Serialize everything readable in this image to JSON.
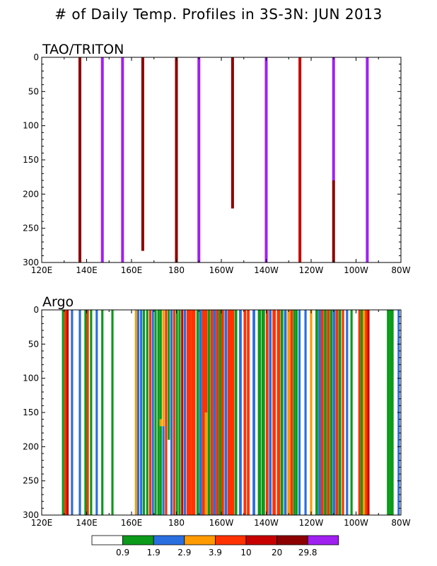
{
  "title": "# of Daily Temp. Profiles in 3S-3N: JUN 2013",
  "colorbar": {
    "labels": [
      "0.9",
      "1.9",
      "2.9",
      "3.9",
      "10",
      "20",
      "29.8"
    ],
    "colors": [
      "#ffffff",
      "#0b9a1a",
      "#2a6fe0",
      "#ff9a00",
      "#ff3200",
      "#c80000",
      "#8c0000",
      "#a020f0"
    ]
  },
  "chart_data": [
    {
      "type": "bar",
      "title": "TAO/TRITON",
      "xlim": [
        120,
        280
      ],
      "ylim": [
        0,
        300
      ],
      "y_inverted": true,
      "x_ticks": [
        {
          "value": 120,
          "label": "120E"
        },
        {
          "value": 140,
          "label": "140E"
        },
        {
          "value": 160,
          "label": "160E"
        },
        {
          "value": 180,
          "label": "180"
        },
        {
          "value": 200,
          "label": "160W"
        },
        {
          "value": 220,
          "label": "140W"
        },
        {
          "value": 240,
          "label": "120W"
        },
        {
          "value": 260,
          "label": "100W"
        },
        {
          "value": 280,
          "label": "80W"
        }
      ],
      "y_ticks": [
        0,
        50,
        100,
        150,
        200,
        250,
        300
      ],
      "bars": [
        {
          "lon": 137.0,
          "color": "#8c0000",
          "segments": [
            [
              0,
              300
            ]
          ]
        },
        {
          "lon": 147.0,
          "color": "#a020f0",
          "segments": [
            [
              0,
              300
            ]
          ]
        },
        {
          "lon": 156.0,
          "color": "#a020f0",
          "segments": [
            [
              0,
              300
            ]
          ]
        },
        {
          "lon": 165.0,
          "color": "#8c0000",
          "segments": [
            [
              0,
              283
            ]
          ]
        },
        {
          "lon": 180.0,
          "color": "#8c0000",
          "segments": [
            [
              0,
              300
            ]
          ]
        },
        {
          "lon": 190.0,
          "color": "#a020f0",
          "segments": [
            [
              0,
              300
            ]
          ]
        },
        {
          "lon": 205.0,
          "color": "#8c0000",
          "segments": [
            [
              0,
              221
            ]
          ]
        },
        {
          "lon": 220.0,
          "color": "#a020f0",
          "segments": [
            [
              0,
              300
            ]
          ]
        },
        {
          "lon": 235.0,
          "color": "#c80000",
          "segments": [
            [
              0,
              300
            ]
          ]
        },
        {
          "lon": 250.0,
          "segments": [
            [
              0,
              180,
              "#a020f0"
            ],
            [
              180,
              300,
              "#8c0000"
            ]
          ]
        },
        {
          "lon": 265.0,
          "color": "#a020f0",
          "segments": [
            [
              0,
              300
            ]
          ]
        }
      ]
    },
    {
      "type": "bar",
      "title": "Argo",
      "xlim": [
        120,
        280
      ],
      "ylim": [
        0,
        300
      ],
      "y_inverted": true,
      "x_ticks": [
        {
          "value": 120,
          "label": "120E"
        },
        {
          "value": 140,
          "label": "140E"
        },
        {
          "value": 160,
          "label": "160E"
        },
        {
          "value": 180,
          "label": "180"
        },
        {
          "value": 200,
          "label": "160W"
        },
        {
          "value": 220,
          "label": "140W"
        },
        {
          "value": 240,
          "label": "120W"
        },
        {
          "value": 260,
          "label": "100W"
        },
        {
          "value": 280,
          "label": "80W"
        }
      ],
      "y_ticks": [
        0,
        50,
        100,
        150,
        200,
        250,
        300
      ],
      "bars": [
        {
          "lon": 129.5,
          "w": 1.0,
          "color": "#0b9a1a"
        },
        {
          "lon": 130.5,
          "w": 1.0,
          "color": "#ff3200"
        },
        {
          "lon": 131.5,
          "w": 1.0,
          "color": "#c80000"
        },
        {
          "lon": 133.5,
          "w": 1.0,
          "color": "#2a6fe0"
        },
        {
          "lon": 137.0,
          "w": 1.0,
          "color": "#2a6fe0"
        },
        {
          "lon": 139.5,
          "w": 1.0,
          "color": "#0b9a1a"
        },
        {
          "lon": 140.5,
          "w": 1.0,
          "color": "#ff3200"
        },
        {
          "lon": 142.0,
          "w": 1.0,
          "color": "#0b9a1a"
        },
        {
          "lon": 144.5,
          "w": 1.0,
          "color": "#2a6fe0"
        },
        {
          "lon": 147.0,
          "w": 1.0,
          "color": "#0b9a1a"
        },
        {
          "lon": 151.5,
          "w": 1.0,
          "color": "#0b9a1a"
        },
        {
          "lon": 162.0,
          "w": 1.0,
          "color": "#ff9a00"
        },
        {
          "lon": 163.0,
          "w": 1.0,
          "color": "#2a6fe0"
        },
        {
          "lon": 164.3,
          "w": 1.0,
          "color": "#2a6fe0"
        },
        {
          "lon": 165.5,
          "w": 1.0,
          "color": "#0b9a1a"
        },
        {
          "lon": 167.0,
          "w": 1.0,
          "color": "#0b9a1a"
        },
        {
          "lon": 168.3,
          "w": 1.0,
          "color": "#ff3200"
        },
        {
          "lon": 169.5,
          "w": 1.0,
          "color": "#2a6fe0"
        },
        {
          "lon": 170.7,
          "w": 1.0,
          "color": "#0b9a1a"
        },
        {
          "lon": 172.0,
          "w": 1.0,
          "color": "#0b9a1a"
        },
        {
          "lon": 173.0,
          "w": 1.0,
          "segments": [
            [
              0,
              160,
              "#0b9a1a"
            ],
            [
              160,
              170,
              "#ff9a00"
            ],
            [
              170,
              300,
              "#0b9a1a"
            ]
          ]
        },
        {
          "lon": 174.2,
          "w": 1.0,
          "segments": [
            [
              0,
              160,
              "#ff9a00"
            ],
            [
              160,
              170,
              "#ff9a00"
            ],
            [
              170,
              300,
              "#2a6fe0"
            ]
          ]
        },
        {
          "lon": 175.4,
          "w": 1.0,
          "color": "#ff3200"
        },
        {
          "lon": 176.6,
          "w": 1.0,
          "segments": [
            [
              0,
              190,
              "#0b9a1a"
            ],
            [
              190,
              300,
              "#ffffff"
            ]
          ]
        },
        {
          "lon": 177.8,
          "w": 1.0,
          "color": "#2a6fe0"
        },
        {
          "lon": 179.0,
          "w": 1.0,
          "color": "#ff3200"
        },
        {
          "lon": 180.2,
          "w": 1.0,
          "color": "#0b9a1a"
        },
        {
          "lon": 181.4,
          "w": 1.0,
          "color": "#0b9a1a"
        },
        {
          "lon": 182.6,
          "w": 1.0,
          "color": "#c80000"
        },
        {
          "lon": 183.8,
          "w": 1.0,
          "color": "#2a6fe0"
        },
        {
          "lon": 185.5,
          "w": 2.0,
          "color": "#ff3200"
        },
        {
          "lon": 187.5,
          "w": 2.0,
          "color": "#ff3200"
        },
        {
          "lon": 189.5,
          "w": 1.2,
          "color": "#0b9a1a"
        },
        {
          "lon": 190.8,
          "w": 1.2,
          "color": "#2a6fe0"
        },
        {
          "lon": 192.0,
          "w": 1.2,
          "color": "#ff3200"
        },
        {
          "lon": 193.2,
          "w": 1.2,
          "segments": [
            [
              0,
              150,
              "#ff3200"
            ],
            [
              150,
              300,
              "#ff9a00"
            ]
          ]
        },
        {
          "lon": 194.5,
          "w": 1.2,
          "color": "#0b9a1a"
        },
        {
          "lon": 195.8,
          "w": 1.2,
          "color": "#ff3200"
        },
        {
          "lon": 197.0,
          "w": 1.2,
          "color": "#2a6fe0"
        },
        {
          "lon": 198.2,
          "w": 1.2,
          "color": "#ff3200"
        },
        {
          "lon": 199.4,
          "w": 1.2,
          "color": "#0b9a1a"
        },
        {
          "lon": 200.6,
          "w": 1.2,
          "color": "#ff3200"
        },
        {
          "lon": 202.0,
          "w": 1.2,
          "color": "#2a6fe0"
        },
        {
          "lon": 203.5,
          "w": 1.5,
          "color": "#ff3200"
        },
        {
          "lon": 205.0,
          "w": 1.5,
          "color": "#ff3200"
        },
        {
          "lon": 206.5,
          "w": 1.2,
          "color": "#0b9a1a"
        },
        {
          "lon": 208.5,
          "w": 1.2,
          "color": "#2a6fe0"
        },
        {
          "lon": 210.5,
          "w": 1.2,
          "color": "#ff3200"
        },
        {
          "lon": 212.0,
          "w": 1.2,
          "color": "#ff3200"
        },
        {
          "lon": 214.5,
          "w": 1.2,
          "color": "#2a6fe0"
        },
        {
          "lon": 217.0,
          "w": 1.5,
          "color": "#0b9a1a"
        },
        {
          "lon": 218.7,
          "w": 1.5,
          "color": "#0b9a1a"
        },
        {
          "lon": 220.4,
          "w": 1.2,
          "color": "#ff3200"
        },
        {
          "lon": 221.8,
          "w": 1.2,
          "color": "#2a6fe0"
        },
        {
          "lon": 223.5,
          "w": 1.5,
          "color": "#ff3200"
        },
        {
          "lon": 225.5,
          "w": 1.5,
          "color": "#ff3200"
        },
        {
          "lon": 227.0,
          "w": 1.2,
          "color": "#0b9a1a"
        },
        {
          "lon": 228.5,
          "w": 1.2,
          "color": "#2a6fe0"
        },
        {
          "lon": 230.0,
          "w": 1.2,
          "color": "#ff9a00"
        },
        {
          "lon": 231.3,
          "w": 1.2,
          "color": "#ff3200"
        },
        {
          "lon": 232.5,
          "w": 1.0,
          "color": "#0b9a1a"
        },
        {
          "lon": 233.5,
          "w": 1.0,
          "color": "#0b9a1a"
        },
        {
          "lon": 234.8,
          "w": 1.0,
          "color": "#2a6fe0"
        },
        {
          "lon": 237.5,
          "w": 1.0,
          "color": "#2a6fe0"
        },
        {
          "lon": 240.0,
          "w": 1.0,
          "color": "#ff9a00"
        },
        {
          "lon": 242.5,
          "w": 1.2,
          "color": "#0b9a1a"
        },
        {
          "lon": 243.8,
          "w": 1.2,
          "color": "#2a6fe0"
        },
        {
          "lon": 245.0,
          "w": 1.2,
          "color": "#ff3200"
        },
        {
          "lon": 246.3,
          "w": 1.2,
          "color": "#0b9a1a"
        },
        {
          "lon": 247.6,
          "w": 1.2,
          "color": "#ff3200"
        },
        {
          "lon": 248.9,
          "w": 1.2,
          "color": "#0b9a1a"
        },
        {
          "lon": 250.2,
          "w": 1.2,
          "color": "#2a6fe0"
        },
        {
          "lon": 251.5,
          "w": 1.2,
          "color": "#ff3200"
        },
        {
          "lon": 252.8,
          "w": 1.2,
          "color": "#0b9a1a"
        },
        {
          "lon": 254.2,
          "w": 1.0,
          "color": "#ff3200"
        },
        {
          "lon": 256.0,
          "w": 1.0,
          "color": "#2a6fe0"
        },
        {
          "lon": 258.0,
          "w": 1.0,
          "color": "#0b9a1a"
        },
        {
          "lon": 261.5,
          "w": 1.0,
          "color": "#ff3200"
        },
        {
          "lon": 262.5,
          "w": 1.0,
          "color": "#0b9a1a"
        },
        {
          "lon": 263.5,
          "w": 1.0,
          "color": "#ff9a00"
        },
        {
          "lon": 264.5,
          "w": 1.0,
          "color": "#ff3200"
        },
        {
          "lon": 265.5,
          "w": 1.0,
          "color": "#c80000"
        },
        {
          "lon": 274.5,
          "w": 1.5,
          "color": "#0b9a1a"
        },
        {
          "lon": 276.0,
          "w": 1.5,
          "color": "#0b9a1a"
        },
        {
          "lon": 279.0,
          "w": 1.0,
          "color": "#2a6fe0"
        }
      ]
    }
  ]
}
